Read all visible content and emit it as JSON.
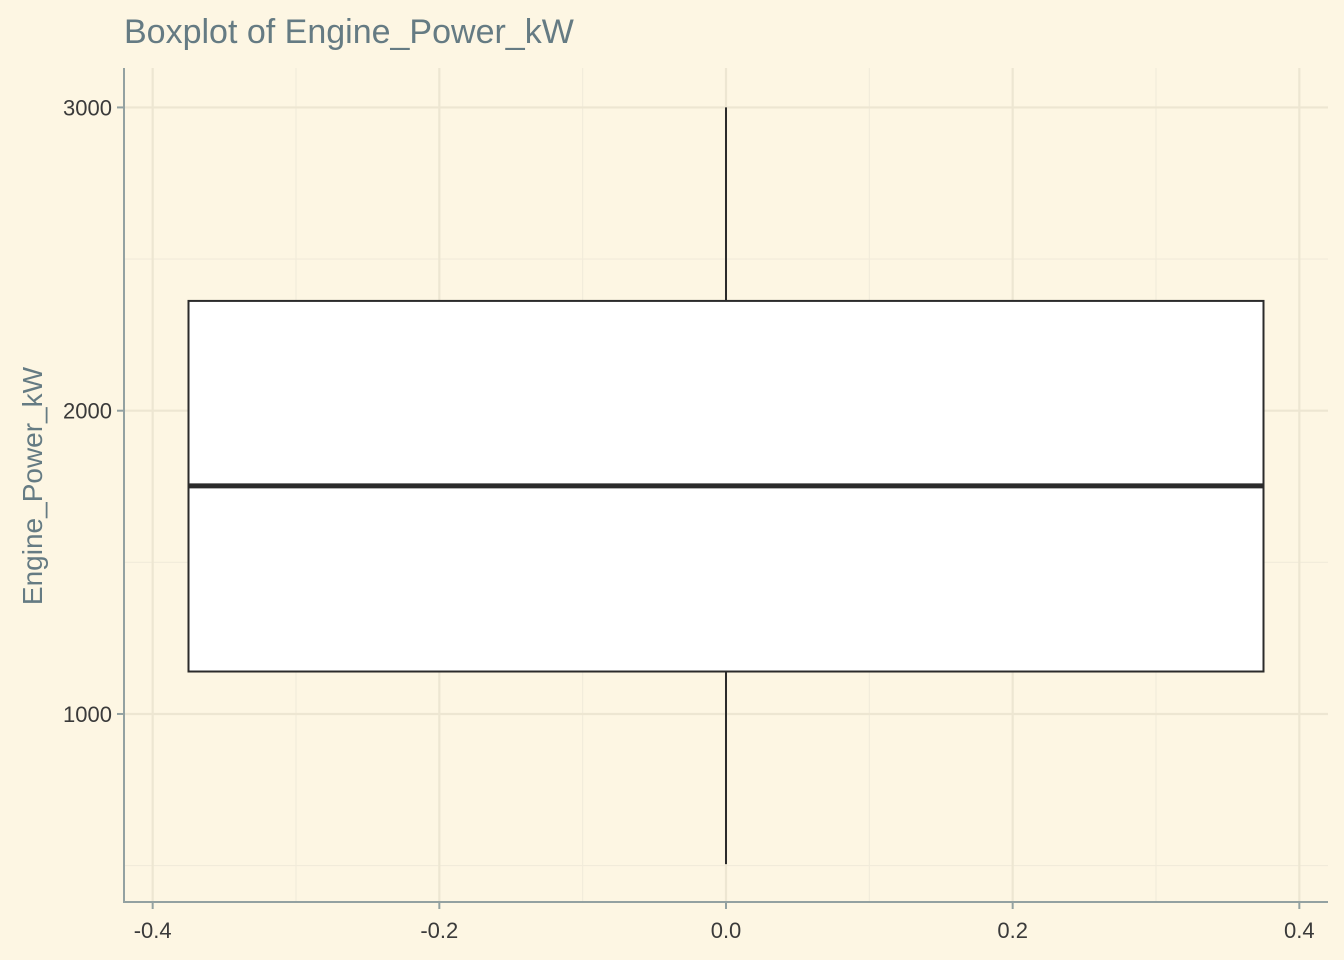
{
  "chart_data": {
    "type": "boxplot",
    "title": "Boxplot of Engine_Power_kW",
    "xlabel": "",
    "ylabel": "Engine_Power_kW",
    "xlim": [
      -0.42,
      0.42
    ],
    "ylim": [
      380,
      3130
    ],
    "x_ticks": [
      -0.4,
      -0.2,
      0.0,
      0.2,
      0.4
    ],
    "x_tick_labels": [
      "-0.4",
      "-0.2",
      "0.0",
      "0.2",
      "0.4"
    ],
    "x_minor_ticks": [
      -0.3,
      -0.1,
      0.1,
      0.3
    ],
    "y_ticks": [
      1000,
      2000,
      3000
    ],
    "y_tick_labels": [
      "1000",
      "2000",
      "3000"
    ],
    "y_minor_ticks": [
      500,
      1500,
      2500
    ],
    "grid": true,
    "box": {
      "x_left": -0.375,
      "x_right": 0.375,
      "whisker_x": 0.0,
      "min": 505,
      "q1": 1140,
      "median": 1752,
      "q3": 2362,
      "max": 3000
    },
    "colors": {
      "background": "#fdf6e3",
      "box_fill": "#ffffff",
      "box_stroke": "#2b2b2b",
      "title": "#657b83"
    }
  }
}
